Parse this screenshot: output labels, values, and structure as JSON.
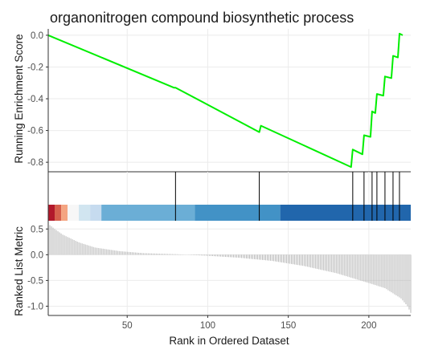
{
  "chart_data": {
    "type": "line",
    "title": "organonitrogen compound biosynthetic process",
    "xlabel": "Rank in Ordered Dataset",
    "xlim": [
      1,
      226
    ],
    "x_ticks": [
      "50",
      "100",
      "150",
      "200"
    ],
    "grid": true,
    "panels": [
      {
        "name": "running-score",
        "ylabel": "Running Enrichment Score",
        "ylim": [
          -0.86,
          0.04
        ],
        "y_ticks": [
          "0.0",
          "-0.2",
          "-0.4",
          "-0.6",
          "-0.8"
        ],
        "color": "#00ee00",
        "points": [
          {
            "x": 1,
            "y": 0.0
          },
          {
            "x": 79,
            "y": -0.33
          },
          {
            "x": 80,
            "y": -0.33
          },
          {
            "x": 132,
            "y": -0.61
          },
          {
            "x": 133,
            "y": -0.57
          },
          {
            "x": 189,
            "y": -0.83
          },
          {
            "x": 190,
            "y": -0.72
          },
          {
            "x": 196,
            "y": -0.75
          },
          {
            "x": 197,
            "y": -0.63
          },
          {
            "x": 201,
            "y": -0.64
          },
          {
            "x": 202,
            "y": -0.48
          },
          {
            "x": 204,
            "y": -0.49
          },
          {
            "x": 205,
            "y": -0.37
          },
          {
            "x": 209,
            "y": -0.38
          },
          {
            "x": 210,
            "y": -0.26
          },
          {
            "x": 214,
            "y": -0.27
          },
          {
            "x": 215,
            "y": -0.13
          },
          {
            "x": 218,
            "y": -0.14
          },
          {
            "x": 219,
            "y": 0.01
          },
          {
            "x": 221,
            "y": 0.0
          }
        ]
      },
      {
        "name": "gene-hits",
        "hits": [
          80,
          132,
          190,
          197,
          202,
          205,
          210,
          215,
          219
        ],
        "bands": [
          {
            "from": 1,
            "to": 5,
            "color": "#b2182b"
          },
          {
            "from": 5,
            "to": 9,
            "color": "#d6604d"
          },
          {
            "from": 9,
            "to": 13,
            "color": "#f4a582"
          },
          {
            "from": 13,
            "to": 20,
            "color": "#f7f7f7"
          },
          {
            "from": 20,
            "to": 27,
            "color": "#d1e5f0"
          },
          {
            "from": 27,
            "to": 34,
            "color": "#c6dbef"
          },
          {
            "from": 34,
            "to": 92,
            "color": "#6baed6"
          },
          {
            "from": 92,
            "to": 145,
            "color": "#4292c6"
          },
          {
            "from": 145,
            "to": 226,
            "color": "#2166ac"
          }
        ]
      },
      {
        "name": "ranked-list",
        "ylabel": "Ranked List Metric",
        "ylim": [
          -1.18,
          0.66
        ],
        "y_ticks": [
          "0.5",
          "0.0",
          "-0.5",
          "-1.0"
        ],
        "color": "#a6a6a6",
        "curve": [
          {
            "x": 1,
            "y": 0.6
          },
          {
            "x": 5,
            "y": 0.5
          },
          {
            "x": 10,
            "y": 0.39
          },
          {
            "x": 20,
            "y": 0.24
          },
          {
            "x": 30,
            "y": 0.14
          },
          {
            "x": 45,
            "y": 0.07
          },
          {
            "x": 60,
            "y": 0.03
          },
          {
            "x": 80,
            "y": 0.01
          },
          {
            "x": 100,
            "y": -0.02
          },
          {
            "x": 120,
            "y": -0.06
          },
          {
            "x": 140,
            "y": -0.12
          },
          {
            "x": 160,
            "y": -0.22
          },
          {
            "x": 180,
            "y": -0.36
          },
          {
            "x": 200,
            "y": -0.55
          },
          {
            "x": 210,
            "y": -0.65
          },
          {
            "x": 220,
            "y": -0.85
          },
          {
            "x": 224,
            "y": -1.0
          },
          {
            "x": 226,
            "y": -1.13
          }
        ]
      }
    ]
  }
}
